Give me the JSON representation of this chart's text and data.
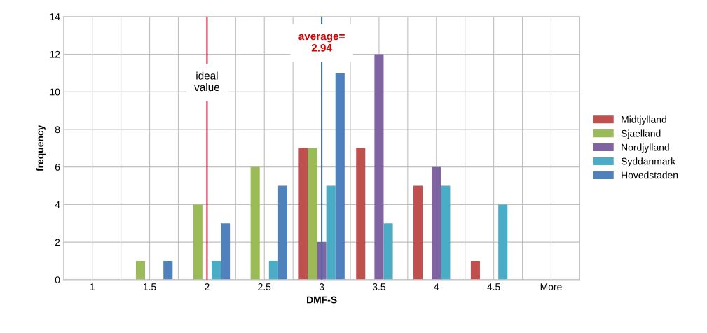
{
  "chart_data": {
    "type": "bar",
    "xlabel": "DMF-S",
    "ylabel": "frequency",
    "categories": [
      "1",
      "1.5",
      "2",
      "2.5",
      "3",
      "3.5",
      "4",
      "4.5",
      "More"
    ],
    "series": [
      {
        "name": "Midtjylland",
        "color": "#c0504d",
        "values": [
          0,
          0,
          0,
          0,
          7,
          7,
          5,
          1,
          0
        ]
      },
      {
        "name": "Sjaelland",
        "color": "#9bbb59",
        "values": [
          0,
          1,
          4,
          6,
          7,
          0,
          0,
          0,
          0
        ]
      },
      {
        "name": "Nordjylland",
        "color": "#8064a2",
        "values": [
          0,
          0,
          0,
          0,
          2,
          12,
          6,
          0,
          0
        ]
      },
      {
        "name": "Syddanmark",
        "color": "#4bacc6",
        "values": [
          0,
          0,
          1,
          1,
          5,
          3,
          5,
          4,
          0
        ]
      },
      {
        "name": "Hovedstaden",
        "color": "#4f81bd",
        "values": [
          0,
          1,
          3,
          5,
          11,
          0,
          0,
          0,
          0
        ]
      }
    ],
    "ylim": [
      0,
      14
    ],
    "yticks": [
      0,
      2,
      4,
      6,
      8,
      10,
      12,
      14
    ],
    "ref_lines": [
      {
        "axis": "x",
        "value": "2",
        "label": "ideal\nvalue",
        "color": "#c0304a"
      },
      {
        "axis": "x",
        "value": "3",
        "label": "average=\n2.94",
        "color": "#3a6fb5"
      }
    ],
    "grid": true,
    "legend": "right"
  }
}
